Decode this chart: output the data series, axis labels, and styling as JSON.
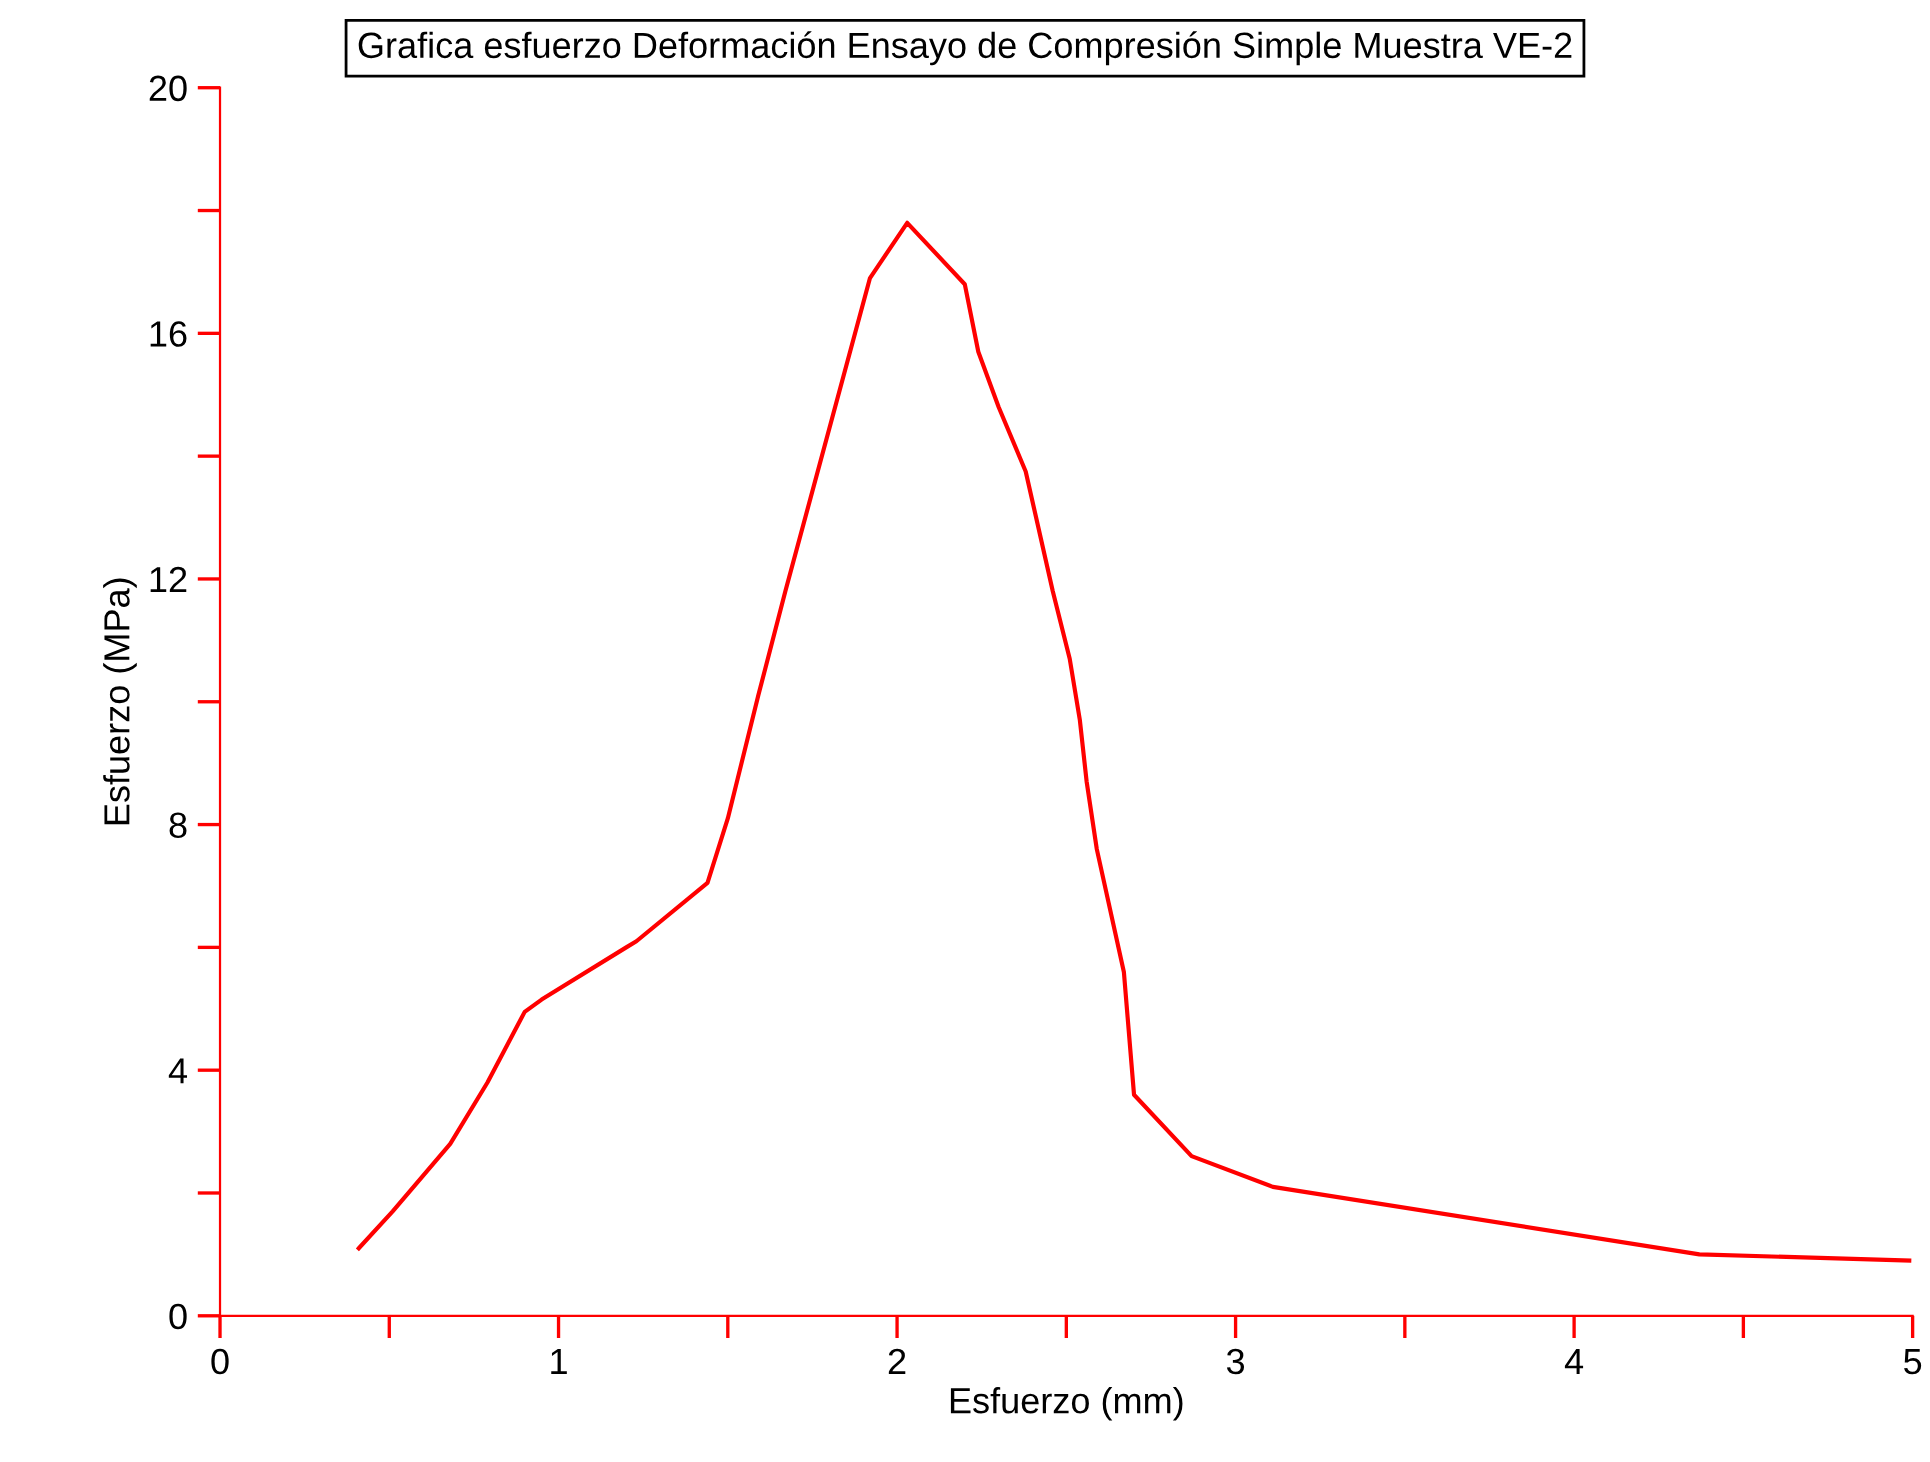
{
  "chart_data": {
    "type": "line",
    "title": "Grafica esfuerzo Deformación Ensayo de Compresión Simple Muestra VE-2",
    "xlabel": "Esfuerzo (mm)",
    "ylabel": "Esfuerzo (MPa)",
    "x": [
      0.41,
      0.51,
      0.68,
      0.79,
      0.9,
      0.95,
      1.2,
      1.23,
      1.44,
      1.5,
      1.59,
      1.67,
      1.92,
      2.03,
      2.2,
      2.24,
      2.3,
      2.38,
      2.46,
      2.51,
      2.54,
      2.56,
      2.59,
      2.67,
      2.7,
      2.87,
      3.11,
      4.37,
      4.99
    ],
    "series": [
      {
        "color": "#ff0000",
        "values": [
          1.1,
          1.7,
          2.8,
          3.8,
          4.95,
          5.15,
          6.0,
          6.1,
          7.05,
          8.1,
          10.1,
          11.8,
          16.9,
          17.8,
          16.8,
          15.7,
          14.8,
          13.75,
          11.8,
          10.7,
          9.7,
          8.7,
          7.6,
          5.6,
          3.6,
          2.6,
          2.1,
          1.0,
          0.9
        ]
      }
    ],
    "xlim": [
      0,
      5
    ],
    "ylim": [
      0,
      20
    ],
    "xticks": [
      0,
      {
        "value": 0.5,
        "label": null
      },
      1,
      {
        "value": 1.5,
        "label": null
      },
      2,
      {
        "value": 2.5,
        "label": null
      },
      3,
      {
        "value": 3.5,
        "label": null
      },
      4,
      {
        "value": 4.5,
        "label": null
      },
      5
    ],
    "yticks": [
      0,
      {
        "value": 2,
        "label": null
      },
      4,
      {
        "value": 6,
        "label": null
      },
      8,
      {
        "value": 10,
        "label": null
      },
      12,
      {
        "value": 14,
        "label": null
      },
      16,
      {
        "value": 18,
        "label": null
      },
      20
    ],
    "grid": false,
    "legend": false,
    "marker": "none",
    "line_style": "solid"
  }
}
